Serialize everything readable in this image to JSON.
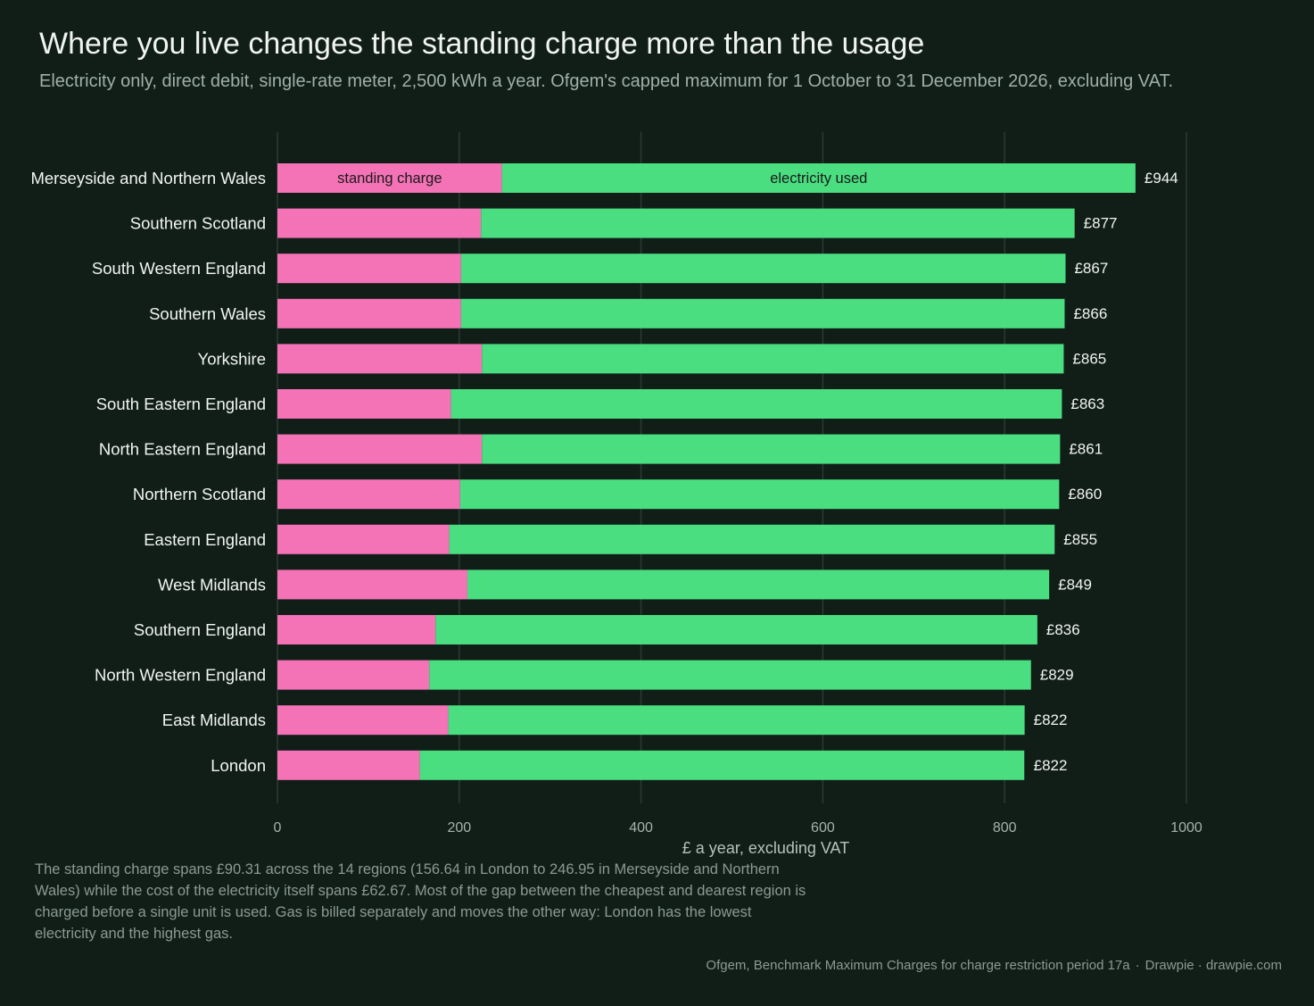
{
  "title": "Where you live changes the standing charge more than the usage",
  "subtitle": "Electricity only, direct debit, single-rate meter, 2,500 kWh a year. Ofgem's capped maximum for 1 October to 31 December 2026, excluding VAT.",
  "note": "The standing charge spans £90.31 across the 14 regions (156.64 in London to 246.95 in Merseyside and Northern Wales) while the cost of the electricity itself spans £62.67. Most of the gap between the cheapest and dearest region is charged before a single unit is used. Gas is billed separately and moves the other way: London has the lowest electricity and the highest gas.",
  "source": {
    "text": "Ofgem, Benchmark Maximum Charges for charge restriction period 17a",
    "separator": "·",
    "brand": "Drawpie · drawpie.com"
  },
  "colors": {
    "background": "#111e18",
    "standing": "#f472b6",
    "usage": "#4ade80",
    "grid": "#2a3a33"
  },
  "chart_data": {
    "type": "bar",
    "orientation": "horizontal",
    "stacked": true,
    "xlabel": "£ a year, excluding VAT",
    "xlim": [
      0,
      1000
    ],
    "xticks": [
      0,
      200,
      400,
      600,
      800,
      1000
    ],
    "grid": true,
    "categories": [
      "Merseyside and Northern Wales",
      "Southern Scotland",
      "South Western England",
      "Southern Wales",
      "Yorkshire",
      "South Eastern England",
      "North Eastern England",
      "Northern Scotland",
      "Eastern England",
      "West Midlands",
      "Southern England",
      "North Western England",
      "East Midlands",
      "London"
    ],
    "series": [
      {
        "name": "standing charge",
        "color": "#f472b6",
        "values": [
          246.95,
          224,
          202,
          202,
          225,
          191,
          225,
          201,
          189,
          209,
          174,
          167,
          188,
          156.64
        ]
      },
      {
        "name": "electricity used",
        "color": "#4ade80",
        "values": [
          697,
          653,
          665,
          664,
          640,
          672,
          636,
          659,
          666,
          640,
          662,
          662,
          634,
          665
        ]
      }
    ],
    "totals": [
      944,
      877,
      867,
      866,
      865,
      863,
      861,
      860,
      855,
      849,
      836,
      829,
      822,
      822
    ],
    "total_labels": [
      "£944",
      "£877",
      "£867",
      "£866",
      "£865",
      "£863",
      "£861",
      "£860",
      "£855",
      "£849",
      "£836",
      "£829",
      "£822",
      "£822"
    ]
  }
}
